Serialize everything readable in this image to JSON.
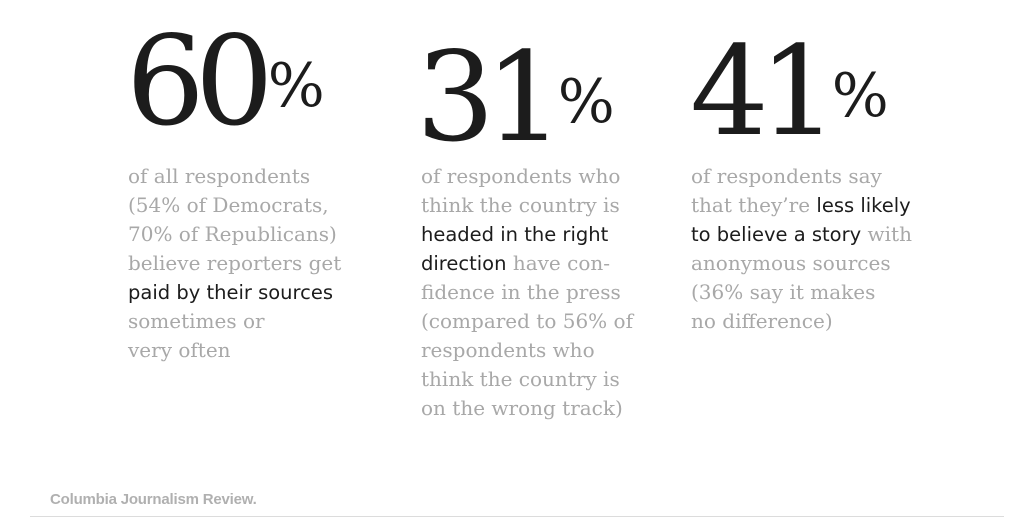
{
  "stats": [
    {
      "number": "60",
      "percent_sign": "%",
      "lines": [
        [
          {
            "t": "of all respondents",
            "hl": false
          }
        ],
        [
          {
            "t": "(54% of Democrats,",
            "hl": false
          }
        ],
        [
          {
            "t": "70% of Republicans)",
            "hl": false
          }
        ],
        [
          {
            "t": "believe reporters get",
            "hl": false
          }
        ],
        [
          {
            "t": "paid by their sources",
            "hl": true
          }
        ],
        [
          {
            "t": "sometimes or",
            "hl": false
          }
        ],
        [
          {
            "t": "very often",
            "hl": false
          }
        ]
      ]
    },
    {
      "number": "31",
      "percent_sign": "%",
      "lines": [
        [
          {
            "t": "of respondents who",
            "hl": false
          }
        ],
        [
          {
            "t": "think the country is",
            "hl": false
          }
        ],
        [
          {
            "t": "headed in the right",
            "hl": true
          }
        ],
        [
          {
            "t": "direction",
            "hl": true
          },
          {
            "t": " have con-",
            "hl": false
          }
        ],
        [
          {
            "t": "fidence in the press",
            "hl": false
          }
        ],
        [
          {
            "t": "(compared to 56% of",
            "hl": false
          }
        ],
        [
          {
            "t": "respondents who",
            "hl": false
          }
        ],
        [
          {
            "t": "think the country is",
            "hl": false
          }
        ],
        [
          {
            "t": "on the wrong track)",
            "hl": false
          }
        ]
      ]
    },
    {
      "number": "41",
      "percent_sign": "%",
      "lines": [
        [
          {
            "t": "of respondents say",
            "hl": false
          }
        ],
        [
          {
            "t": "that they’re ",
            "hl": false
          },
          {
            "t": "less likely",
            "hl": true
          }
        ],
        [
          {
            "t": "to believe a story",
            "hl": true
          },
          {
            "t": " with",
            "hl": false
          }
        ],
        [
          {
            "t": "anonymous sources",
            "hl": false
          }
        ],
        [
          {
            "t": "(36% say it makes",
            "hl": false
          }
        ],
        [
          {
            "t": "no difference)",
            "hl": false
          }
        ]
      ]
    }
  ],
  "footer": {
    "brand": "Columbia Journalism Review."
  },
  "colors": {
    "text_dark": "#1c1c1c",
    "text_light": "#a8a8a8",
    "footer_gray": "#b0b0b0",
    "background": "#ffffff"
  }
}
